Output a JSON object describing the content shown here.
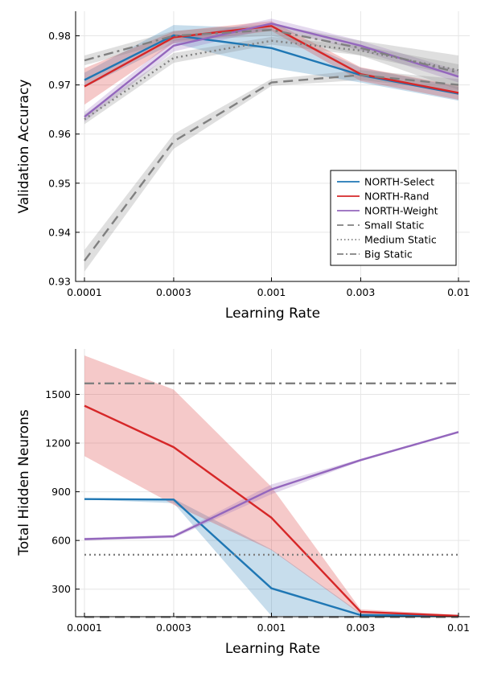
{
  "chart_data": [
    {
      "type": "line",
      "xlabel": "Learning Rate",
      "ylabel": "Validation Accuracy",
      "xscale": "log",
      "x_ticks": [
        "0.0001",
        "0.0003",
        "0.001",
        "0.003",
        "0.01"
      ],
      "x": [
        0.0001,
        0.0003,
        0.001,
        0.003,
        0.01
      ],
      "ylim": [
        0.93,
        0.985
      ],
      "y_ticks": [
        "0.93",
        "0.94",
        "0.95",
        "0.96",
        "0.97",
        "0.98"
      ],
      "y_tick_values": [
        0.93,
        0.94,
        0.95,
        0.96,
        0.97,
        0.98
      ],
      "grid": true,
      "legend_position": "bottom-right",
      "series": [
        {
          "name": "NORTH-Select",
          "color": "#1f77b4",
          "style": "solid",
          "values": [
            0.971,
            0.9801,
            0.9775,
            0.972,
            0.9682
          ],
          "lower": [
            0.9695,
            0.9785,
            0.9735,
            0.9705,
            0.9668
          ],
          "upper": [
            0.9725,
            0.9822,
            0.9815,
            0.9735,
            0.9696
          ]
        },
        {
          "name": "NORTH-Rand",
          "color": "#d62728",
          "style": "solid",
          "values": [
            0.9697,
            0.9797,
            0.982,
            0.9722,
            0.9684
          ],
          "lower": [
            0.966,
            0.9785,
            0.981,
            0.9708,
            0.967
          ],
          "upper": [
            0.9734,
            0.9809,
            0.983,
            0.9736,
            0.9698
          ]
        },
        {
          "name": "NORTH-Weight",
          "color": "#9467bd",
          "style": "solid",
          "values": [
            0.9635,
            0.978,
            0.9825,
            0.978,
            0.9717
          ],
          "lower": [
            0.9625,
            0.9768,
            0.9815,
            0.977,
            0.9705
          ],
          "upper": [
            0.9645,
            0.9792,
            0.9835,
            0.979,
            0.9729
          ]
        },
        {
          "name": "Small Static",
          "color": "#808080",
          "style": "dash",
          "values": [
            0.9342,
            0.9585,
            0.9705,
            0.972,
            0.97
          ],
          "lower": [
            0.932,
            0.957,
            0.9698,
            0.971,
            0.9688
          ],
          "upper": [
            0.9364,
            0.96,
            0.9712,
            0.973,
            0.9712
          ]
        },
        {
          "name": "Medium Static",
          "color": "#808080",
          "style": "dot",
          "values": [
            0.963,
            0.9755,
            0.979,
            0.977,
            0.973
          ],
          "lower": [
            0.962,
            0.9745,
            0.9782,
            0.976,
            0.9718
          ],
          "upper": [
            0.964,
            0.9765,
            0.9798,
            0.978,
            0.9742
          ]
        },
        {
          "name": "Big Static",
          "color": "#808080",
          "style": "dashdot",
          "values": [
            0.975,
            0.98,
            0.9812,
            0.9775,
            0.9725
          ],
          "lower": [
            0.974,
            0.979,
            0.98,
            0.976,
            0.969
          ],
          "upper": [
            0.976,
            0.981,
            0.9824,
            0.979,
            0.976
          ]
        }
      ]
    },
    {
      "type": "line",
      "xlabel": "Learning Rate",
      "ylabel": "Total Hidden Neurons",
      "xscale": "log",
      "x_ticks": [
        "0.0001",
        "0.0003",
        "0.001",
        "0.003",
        "0.01"
      ],
      "x": [
        0.0001,
        0.0003,
        0.001,
        0.003,
        0.01
      ],
      "ylim": [
        130,
        1780
      ],
      "y_ticks": [
        "300",
        "600",
        "900",
        "1200",
        "1500"
      ],
      "y_tick_values": [
        300,
        600,
        900,
        1200,
        1500
      ],
      "grid": true,
      "series": [
        {
          "name": "NORTH-Select",
          "color": "#1f77b4",
          "style": "solid",
          "values": [
            855,
            852,
            305,
            140,
            135
          ],
          "lower": [
            852,
            830,
            135,
            128,
            128
          ],
          "upper": [
            858,
            858,
            545,
            152,
            142
          ]
        },
        {
          "name": "NORTH-Rand",
          "color": "#d62728",
          "style": "solid",
          "values": [
            1430,
            1175,
            740,
            160,
            135
          ],
          "lower": [
            1120,
            820,
            540,
            145,
            128
          ],
          "upper": [
            1740,
            1530,
            930,
            175,
            142
          ]
        },
        {
          "name": "NORTH-Weight",
          "color": "#9467bd",
          "style": "solid",
          "values": [
            608,
            625,
            915,
            1095,
            1268
          ],
          "lower": [
            600,
            615,
            885,
            1088,
            1262
          ],
          "upper": [
            616,
            635,
            945,
            1102,
            1274
          ]
        },
        {
          "name": "Small Static",
          "color": "#808080",
          "style": "dash",
          "values": [
            128,
            128,
            128,
            128,
            128
          ]
        },
        {
          "name": "Medium Static",
          "color": "#808080",
          "style": "dot",
          "values": [
            512,
            512,
            512,
            512,
            512
          ]
        },
        {
          "name": "Big Static",
          "color": "#808080",
          "style": "dashdot",
          "values": [
            1568,
            1568,
            1568,
            1568,
            1568
          ]
        }
      ]
    }
  ]
}
